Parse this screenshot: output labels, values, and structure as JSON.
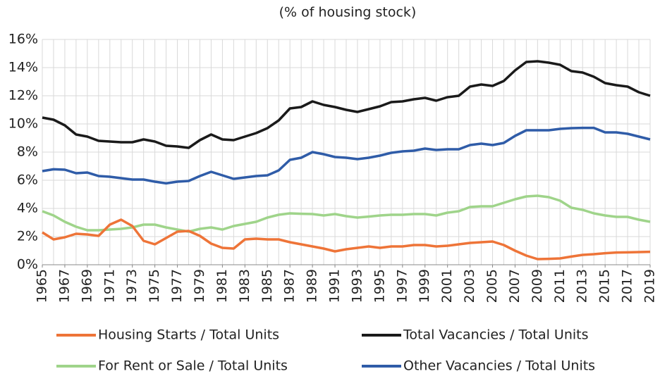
{
  "chart_data": {
    "type": "line",
    "title": "(% of housing stock)",
    "x": [
      1965,
      1966,
      1967,
      1968,
      1969,
      1970,
      1971,
      1972,
      1973,
      1974,
      1975,
      1976,
      1977,
      1978,
      1979,
      1980,
      1981,
      1982,
      1983,
      1984,
      1985,
      1986,
      1987,
      1988,
      1989,
      1990,
      1991,
      1992,
      1993,
      1994,
      1995,
      1996,
      1997,
      1998,
      1999,
      2000,
      2001,
      2002,
      2003,
      2004,
      2005,
      2006,
      2007,
      2008,
      2009,
      2010,
      2011,
      2012,
      2013,
      2014,
      2015,
      2016,
      2017,
      2018,
      2019
    ],
    "xlim": [
      1965,
      2019
    ],
    "xticks": [
      1965,
      1967,
      1969,
      1971,
      1973,
      1975,
      1977,
      1979,
      1981,
      1983,
      1985,
      1987,
      1989,
      1991,
      1993,
      1995,
      1997,
      1999,
      2001,
      2003,
      2005,
      2007,
      2009,
      2011,
      2013,
      2015,
      2017,
      2019
    ],
    "ylim": [
      0,
      16
    ],
    "yticks": [
      {
        "value": 0,
        "label": "0%"
      },
      {
        "value": 2,
        "label": "2%"
      },
      {
        "value": 4,
        "label": "4%"
      },
      {
        "value": 6,
        "label": "6%"
      },
      {
        "value": 8,
        "label": "8%"
      },
      {
        "value": 10,
        "label": "10%"
      },
      {
        "value": 12,
        "label": "12%"
      },
      {
        "value": 14,
        "label": "14%"
      },
      {
        "value": 16,
        "label": "16%"
      }
    ],
    "grid": true,
    "series": [
      {
        "name": "Housing Starts / Total Units",
        "color": "#ee7438",
        "values": [
          2.3,
          1.8,
          1.95,
          2.2,
          2.15,
          2.05,
          2.85,
          3.2,
          2.75,
          1.7,
          1.45,
          1.9,
          2.35,
          2.4,
          2.05,
          1.5,
          1.2,
          1.15,
          1.8,
          1.85,
          1.8,
          1.8,
          1.6,
          1.45,
          1.3,
          1.15,
          0.95,
          1.1,
          1.2,
          1.3,
          1.2,
          1.3,
          1.3,
          1.4,
          1.4,
          1.3,
          1.35,
          1.45,
          1.55,
          1.6,
          1.65,
          1.4,
          1.0,
          0.65,
          0.4,
          0.42,
          0.45,
          0.58,
          0.7,
          0.75,
          0.82,
          0.87,
          0.88,
          0.9,
          0.92
        ]
      },
      {
        "name": "Total Vacancies / Total Units",
        "color": "#1a1a1a",
        "values": [
          10.45,
          10.3,
          9.9,
          9.25,
          9.1,
          8.8,
          8.75,
          8.7,
          8.7,
          8.9,
          8.75,
          8.45,
          8.4,
          8.3,
          8.85,
          9.25,
          8.9,
          8.85,
          9.1,
          9.35,
          9.7,
          10.25,
          11.1,
          11.2,
          11.6,
          11.35,
          11.2,
          11.0,
          10.85,
          11.05,
          11.25,
          11.55,
          11.6,
          11.75,
          11.85,
          11.65,
          11.9,
          12.0,
          12.65,
          12.8,
          12.7,
          13.05,
          13.8,
          14.4,
          14.45,
          14.35,
          14.2,
          13.75,
          13.65,
          13.35,
          12.9,
          12.75,
          12.65,
          12.25,
          12.0
        ]
      },
      {
        "name": "For Rent or Sale / Total Units",
        "color": "#9fd48a",
        "values": [
          3.8,
          3.5,
          3.05,
          2.7,
          2.45,
          2.45,
          2.5,
          2.55,
          2.65,
          2.85,
          2.85,
          2.65,
          2.5,
          2.35,
          2.55,
          2.65,
          2.5,
          2.75,
          2.9,
          3.05,
          3.35,
          3.55,
          3.65,
          3.62,
          3.6,
          3.5,
          3.6,
          3.45,
          3.35,
          3.42,
          3.5,
          3.55,
          3.55,
          3.6,
          3.6,
          3.5,
          3.7,
          3.8,
          4.1,
          4.15,
          4.15,
          4.4,
          4.65,
          4.85,
          4.9,
          4.8,
          4.55,
          4.05,
          3.9,
          3.65,
          3.5,
          3.4,
          3.4,
          3.2,
          3.05
        ]
      },
      {
        "name": "Other Vacancies / Total Units",
        "color": "#2f5ca8",
        "values": [
          6.65,
          6.78,
          6.75,
          6.5,
          6.55,
          6.3,
          6.25,
          6.15,
          6.05,
          6.05,
          5.9,
          5.78,
          5.9,
          5.95,
          6.3,
          6.6,
          6.35,
          6.1,
          6.2,
          6.3,
          6.35,
          6.7,
          7.45,
          7.6,
          8.0,
          7.85,
          7.65,
          7.6,
          7.5,
          7.6,
          7.75,
          7.95,
          8.05,
          8.1,
          8.25,
          8.15,
          8.2,
          8.2,
          8.5,
          8.6,
          8.5,
          8.65,
          9.15,
          9.55,
          9.55,
          9.55,
          9.65,
          9.7,
          9.72,
          9.72,
          9.4,
          9.4,
          9.3,
          9.1,
          8.9
        ]
      }
    ]
  }
}
